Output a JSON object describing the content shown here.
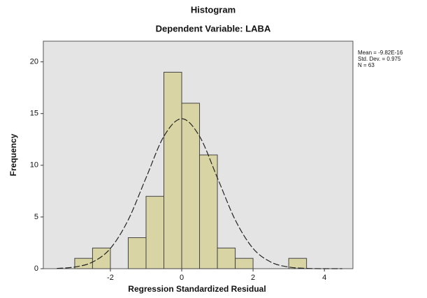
{
  "chart_data": {
    "type": "histogram",
    "title": "Histogram",
    "subtitle": "Dependent Variable: LABA",
    "xlabel": "Regression Standardized Residual",
    "ylabel": "Frequency",
    "stats": [
      "Mean = -9.82E-16",
      "Std. Dev. = 0.975",
      "N = 63"
    ],
    "bins": [
      -3,
      -2.5,
      -2,
      -1.5,
      -1,
      -0.5,
      0,
      0.5,
      1,
      1.5,
      2,
      2.5,
      3,
      3.5
    ],
    "values": [
      1,
      2,
      0,
      3,
      7,
      19,
      16,
      11,
      2,
      1,
      0,
      0,
      1
    ],
    "color": "#d8d4a4",
    "normal_curve": {
      "x": [
        -3.5,
        -3,
        -2.5,
        -2,
        -1.5,
        -1,
        -0.5,
        0,
        0.5,
        1,
        1.5,
        2,
        2.5,
        3,
        3.5,
        4,
        4.5
      ],
      "values": [
        0.03,
        0.16,
        0.64,
        1.96,
        4.72,
        8.79,
        12.8,
        14.5,
        12.8,
        8.79,
        4.72,
        1.96,
        0.64,
        0.16,
        0.03,
        0,
        0
      ]
    },
    "xlim": [
      -3.88,
      4.8
    ],
    "ylim": [
      0,
      22
    ],
    "xticks": [
      -2,
      0,
      2,
      4
    ],
    "yticks": [
      0,
      5,
      10,
      15,
      20
    ]
  }
}
